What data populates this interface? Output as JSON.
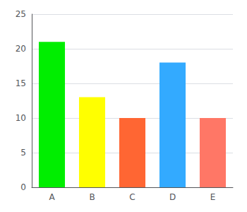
{
  "chart_data": {
    "type": "bar",
    "categories": [
      "A",
      "B",
      "C",
      "D",
      "E"
    ],
    "values": [
      21,
      13,
      10,
      18,
      10
    ],
    "colors": [
      "#00ee00",
      "#ffff00",
      "#ff6633",
      "#33aaff",
      "#ff7766"
    ],
    "ylim": [
      0,
      25
    ],
    "yticks": [
      0,
      5,
      10,
      15,
      20,
      25
    ],
    "grid": true
  }
}
